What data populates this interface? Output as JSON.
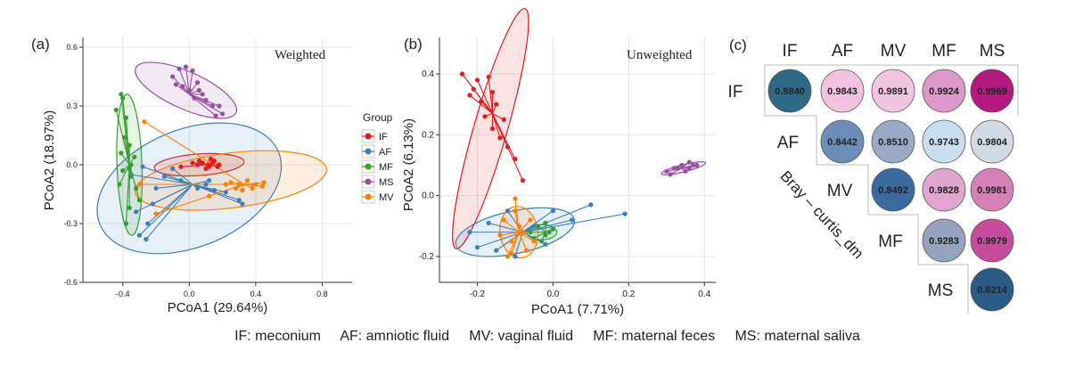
{
  "panel_a": {
    "tag": "(a)",
    "title": "Weighted",
    "chart_data": {
      "type": "scatter",
      "title": "Weighted",
      "xlabel": "PCoA1 (29.64%)",
      "ylabel": "PCoA2 (18.97%)",
      "xlim": [
        -0.64,
        0.98
      ],
      "ylim": [
        -0.6,
        0.65
      ],
      "xticks": [
        -0.4,
        0.0,
        0.4,
        0.8
      ],
      "xtick_labels": [
        "-0.4",
        "0.0",
        "0.4",
        "0.8"
      ],
      "yticks": [
        -0.6,
        -0.3,
        0.0,
        0.3,
        0.6
      ],
      "ytick_labels": [
        "-0.6",
        "-0.3",
        "0.0",
        "0.3",
        "0.6"
      ],
      "grid": true,
      "legend": {
        "title": "Group",
        "position": "right"
      },
      "series": [
        {
          "name": "IF",
          "color": "#e31a1c",
          "centroid": [
            0.1,
            0.0
          ],
          "ellipse": {
            "cx": 0.06,
            "cy": 0.0,
            "rx": 0.27,
            "ry": 0.055,
            "angle": 4
          },
          "points": [
            [
              0.05,
              0.0
            ],
            [
              0.08,
              0.01
            ],
            [
              0.12,
              -0.01
            ],
            [
              0.15,
              0.02
            ],
            [
              0.18,
              0.0
            ],
            [
              0.13,
              0.03
            ],
            [
              0.1,
              -0.02
            ],
            [
              0.06,
              0.02
            ],
            [
              0.17,
              -0.01
            ],
            [
              0.14,
              0.01
            ],
            [
              -0.05,
              -0.01
            ],
            [
              0.02,
              0.01
            ]
          ]
        },
        {
          "name": "AF",
          "color": "#3a7fc0",
          "centroid": [
            0.02,
            -0.1
          ],
          "ellipse": {
            "cx": 0.0,
            "cy": -0.12,
            "rx": 0.58,
            "ry": 0.3,
            "angle": 22
          },
          "points": [
            [
              -0.26,
              -0.38
            ],
            [
              -0.3,
              -0.36
            ],
            [
              -0.25,
              -0.3
            ],
            [
              -0.32,
              -0.24
            ],
            [
              -0.2,
              -0.12
            ],
            [
              -0.15,
              -0.06
            ],
            [
              -0.05,
              -0.08
            ],
            [
              0.3,
              -0.18
            ],
            [
              0.32,
              -0.2
            ],
            [
              0.22,
              -0.14
            ],
            [
              0.05,
              -0.12
            ],
            [
              0.1,
              -0.1
            ],
            [
              -0.28,
              -0.01
            ],
            [
              -0.35,
              -0.05
            ],
            [
              -0.1,
              -0.02
            ],
            [
              0.12,
              -0.08
            ],
            [
              -0.22,
              -0.2
            ],
            [
              0.15,
              -0.13
            ]
          ]
        },
        {
          "name": "MF",
          "color": "#33a02c",
          "centroid": [
            -0.36,
            0.0
          ],
          "ellipse": {
            "cx": -0.36,
            "cy": 0.0,
            "rx": 0.075,
            "ry": 0.36,
            "angle": 2
          },
          "points": [
            [
              -0.41,
              0.36
            ],
            [
              -0.4,
              0.34
            ],
            [
              -0.44,
              0.28
            ],
            [
              -0.38,
              0.24
            ],
            [
              -0.36,
              0.1
            ],
            [
              -0.41,
              0.06
            ],
            [
              -0.35,
              0.0
            ],
            [
              -0.4,
              -0.03
            ],
            [
              -0.35,
              -0.06
            ],
            [
              -0.32,
              -0.12
            ],
            [
              -0.3,
              -0.18
            ],
            [
              -0.36,
              -0.22
            ],
            [
              -0.38,
              -0.3
            ],
            [
              -0.42,
              -0.1
            ],
            [
              -0.33,
              0.04
            ],
            [
              -0.39,
              0.14
            ],
            [
              -0.36,
              -0.02
            ]
          ]
        },
        {
          "name": "MS",
          "color": "#984ea3",
          "centroid": [
            0.0,
            0.36
          ],
          "ellipse": {
            "cx": -0.02,
            "cy": 0.38,
            "rx": 0.33,
            "ry": 0.095,
            "angle": -24
          },
          "points": [
            [
              -0.06,
              0.49
            ],
            [
              -0.02,
              0.5
            ],
            [
              0.02,
              0.48
            ],
            [
              -0.1,
              0.45
            ],
            [
              0.05,
              0.42
            ],
            [
              0.0,
              0.38
            ],
            [
              0.08,
              0.36
            ],
            [
              0.03,
              0.34
            ],
            [
              -0.04,
              0.4
            ],
            [
              0.1,
              0.33
            ],
            [
              0.14,
              0.3
            ],
            [
              0.18,
              0.3
            ],
            [
              0.16,
              0.25
            ],
            [
              0.2,
              0.26
            ],
            [
              -0.08,
              0.41
            ],
            [
              0.06,
              0.38
            ]
          ]
        },
        {
          "name": "MV",
          "color": "#ff7f00",
          "centroid": [
            0.33,
            -0.1
          ],
          "ellipse": {
            "cx": 0.25,
            "cy": -0.08,
            "rx": 0.58,
            "ry": 0.14,
            "angle": 7
          },
          "points": [
            [
              0.3,
              -0.1
            ],
            [
              0.35,
              -0.08
            ],
            [
              0.4,
              -0.1
            ],
            [
              0.44,
              -0.11
            ],
            [
              0.28,
              -0.12
            ],
            [
              0.22,
              -0.1
            ],
            [
              0.38,
              -0.12
            ],
            [
              -0.27,
              0.22
            ],
            [
              -0.3,
              -0.1
            ],
            [
              -0.2,
              -0.25
            ],
            [
              0.12,
              -0.16
            ],
            [
              0.45,
              -0.09
            ],
            [
              0.32,
              -0.13
            ],
            [
              0.25,
              -0.09
            ]
          ]
        }
      ]
    }
  },
  "panel_b": {
    "tag": "(b)",
    "title": "Unweighted",
    "chart_data": {
      "type": "scatter",
      "title": "Unweighted",
      "xlabel": "PCoA1 (7.71%)",
      "ylabel": "PCoA2 (6.13%)",
      "xlim": [
        -0.3,
        0.43
      ],
      "ylim": [
        -0.285,
        0.52
      ],
      "xticks": [
        -0.2,
        0.0,
        0.2,
        0.4
      ],
      "xtick_labels": [
        "-0.2",
        "0.0",
        "0.2",
        "0.4"
      ],
      "yticks": [
        -0.2,
        0.0,
        0.2,
        0.4
      ],
      "ytick_labels": [
        "-0.2",
        "0.0",
        "0.2",
        "0.4"
      ],
      "grid": true,
      "series": [
        {
          "name": "IF",
          "color": "#e31a1c",
          "centroid": [
            -0.16,
            0.27
          ],
          "ellipse": {
            "cx": -0.165,
            "cy": 0.22,
            "rx": 0.33,
            "ry": 0.055,
            "angle": 74
          },
          "points": [
            [
              -0.24,
              0.4
            ],
            [
              -0.2,
              0.38
            ],
            [
              -0.17,
              0.39
            ],
            [
              -0.22,
              0.33
            ],
            [
              -0.19,
              0.31
            ],
            [
              -0.15,
              0.3
            ],
            [
              -0.18,
              0.26
            ],
            [
              -0.13,
              0.25
            ],
            [
              -0.16,
              0.22
            ],
            [
              -0.14,
              0.19
            ],
            [
              -0.12,
              0.16
            ],
            [
              -0.1,
              0.12
            ],
            [
              -0.08,
              0.05
            ],
            [
              -0.21,
              0.35
            ],
            [
              -0.16,
              0.34
            ]
          ]
        },
        {
          "name": "AF",
          "color": "#3a7fc0",
          "centroid": [
            -0.08,
            -0.12
          ],
          "ellipse": {
            "cx": -0.1,
            "cy": -0.12,
            "rx": 0.16,
            "ry": 0.07,
            "angle": 12
          },
          "points": [
            [
              -0.22,
              -0.12
            ],
            [
              -0.2,
              -0.17
            ],
            [
              -0.15,
              -0.18
            ],
            [
              -0.12,
              -0.05
            ],
            [
              -0.05,
              -0.1
            ],
            [
              0.05,
              -0.08
            ],
            [
              0.19,
              -0.06
            ],
            [
              0.1,
              -0.03
            ],
            [
              -0.1,
              -0.2
            ],
            [
              -0.17,
              -0.09
            ],
            [
              -0.02,
              -0.16
            ],
            [
              0.0,
              -0.05
            ]
          ]
        },
        {
          "name": "MF",
          "color": "#33a02c",
          "centroid": [
            -0.02,
            -0.12
          ],
          "ellipse": {
            "cx": -0.03,
            "cy": -0.12,
            "rx": 0.04,
            "ry": 0.025,
            "angle": 0
          },
          "points": [
            [
              -0.04,
              -0.1
            ],
            [
              -0.02,
              -0.13
            ],
            [
              -0.05,
              -0.14
            ],
            [
              0.0,
              -0.11
            ],
            [
              -0.03,
              -0.15
            ],
            [
              -0.01,
              -0.12
            ],
            [
              -0.06,
              -0.12
            ],
            [
              -0.02,
              -0.09
            ]
          ]
        },
        {
          "name": "MS",
          "color": "#984ea3",
          "centroid": [
            0.34,
            0.09
          ],
          "ellipse": {
            "cx": 0.345,
            "cy": 0.09,
            "rx": 0.06,
            "ry": 0.012,
            "angle": 14
          },
          "points": [
            [
              0.3,
              0.08
            ],
            [
              0.32,
              0.09
            ],
            [
              0.34,
              0.1
            ],
            [
              0.36,
              0.09
            ],
            [
              0.38,
              0.1
            ],
            [
              0.35,
              0.08
            ],
            [
              0.31,
              0.07
            ],
            [
              0.37,
              0.1
            ],
            [
              0.33,
              0.09
            ],
            [
              0.36,
              0.11
            ],
            [
              0.34,
              0.1
            ]
          ]
        },
        {
          "name": "MV",
          "color": "#ff7f00",
          "centroid": [
            -0.09,
            -0.12
          ],
          "ellipse": {
            "cx": -0.09,
            "cy": -0.12,
            "rx": 0.05,
            "ry": 0.085,
            "angle": 8
          },
          "points": [
            [
              -0.13,
              -0.08
            ],
            [
              -0.1,
              -0.05
            ],
            [
              -0.08,
              -0.12
            ],
            [
              -0.11,
              -0.15
            ],
            [
              -0.07,
              -0.18
            ],
            [
              -0.12,
              -0.2
            ],
            [
              -0.09,
              -0.1
            ],
            [
              -0.06,
              -0.08
            ],
            [
              -0.1,
              -0.01
            ],
            [
              -0.14,
              -0.13
            ],
            [
              -0.05,
              -0.15
            ],
            [
              -0.11,
              -0.19
            ]
          ]
        }
      ]
    }
  },
  "panel_c": {
    "tag": "(c)",
    "side_label": "Bray – curtis_dm",
    "chart_data": {
      "type": "heatmap",
      "title": "",
      "groups": [
        "IF",
        "AF",
        "MV",
        "MF",
        "MS"
      ],
      "cells": [
        {
          "row": 0,
          "col": 0,
          "value": 0.884,
          "label": "0.8840",
          "color": "#2e6a86"
        },
        {
          "row": 0,
          "col": 1,
          "value": 0.9843,
          "label": "0.9843",
          "color": "#f2c2e0"
        },
        {
          "row": 0,
          "col": 2,
          "value": 0.9891,
          "label": "0.9891",
          "color": "#f1c4e2"
        },
        {
          "row": 0,
          "col": 3,
          "value": 0.9924,
          "label": "0.9924",
          "color": "#dd97c8"
        },
        {
          "row": 0,
          "col": 4,
          "value": 0.9969,
          "label": "0.9969",
          "color": "#b4197f"
        },
        {
          "row": 1,
          "col": 1,
          "value": 0.8442,
          "label": "0.8442",
          "color": "#6b8db8"
        },
        {
          "row": 1,
          "col": 2,
          "value": 0.851,
          "label": "0.8510",
          "color": "#9aa9c6"
        },
        {
          "row": 1,
          "col": 3,
          "value": 0.9743,
          "label": "0.9743",
          "color": "#c9dff0"
        },
        {
          "row": 1,
          "col": 4,
          "value": 0.9804,
          "label": "0.9804",
          "color": "#d2dbe5"
        },
        {
          "row": 2,
          "col": 2,
          "value": 0.8492,
          "label": "0.8492",
          "color": "#3b6a9e"
        },
        {
          "row": 2,
          "col": 3,
          "value": 0.9828,
          "label": "0.9828",
          "color": "#e0a6cf"
        },
        {
          "row": 2,
          "col": 4,
          "value": 0.9981,
          "label": "0.9981",
          "color": "#d680b8"
        },
        {
          "row": 3,
          "col": 3,
          "value": 0.9283,
          "label": "0.9283",
          "color": "#94a2bd"
        },
        {
          "row": 3,
          "col": 4,
          "value": 0.9979,
          "label": "0.9979",
          "color": "#c54b9c"
        },
        {
          "row": 4,
          "col": 4,
          "value": 0.8214,
          "label": "0.8214",
          "color": "#2c5b85"
        }
      ]
    }
  },
  "legend_title": "Group",
  "footer": "IF: meconium     AF: amniotic fluid     MV: vaginal fluid     MF: maternal feces     MS: maternal saliva"
}
